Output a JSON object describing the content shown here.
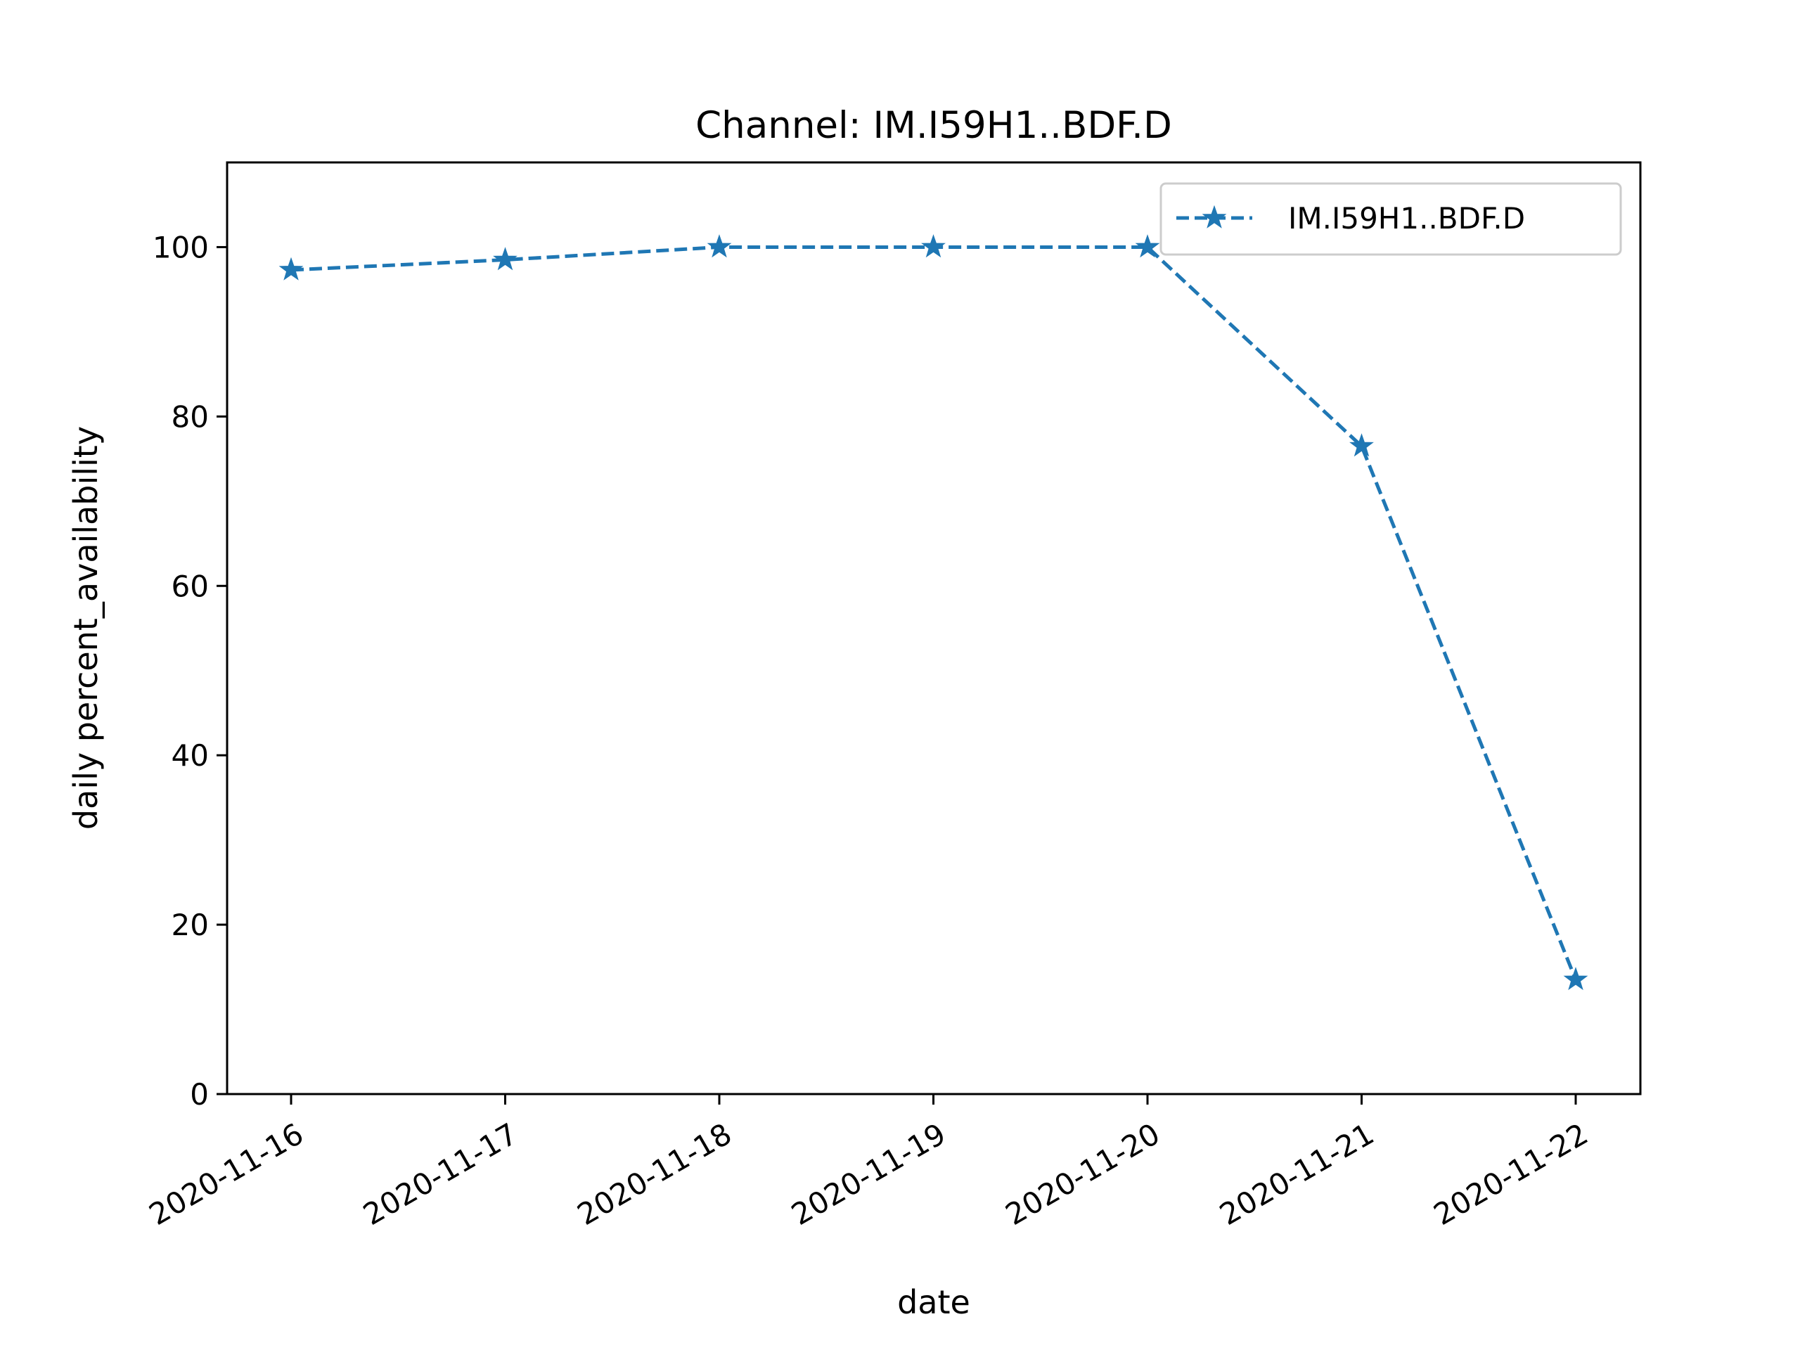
{
  "chart_data": {
    "type": "line",
    "title": "Channel: IM.I59H1..BDF.D",
    "xlabel": "date",
    "ylabel": "daily percent_availability",
    "x": [
      "2020-11-16",
      "2020-11-17",
      "2020-11-18",
      "2020-11-19",
      "2020-11-20",
      "2020-11-21",
      "2020-11-22"
    ],
    "series": [
      {
        "name": "IM.I59H1..BDF.D",
        "values": [
          97.3,
          98.5,
          100,
          100,
          100,
          76.5,
          13.5
        ],
        "color": "#1f77b4",
        "line_style": "dashed",
        "marker": "star"
      }
    ],
    "ylim": [
      0,
      110
    ],
    "yticks": [
      0,
      20,
      40,
      60,
      80,
      100
    ],
    "grid": false,
    "legend_position": "top-right"
  }
}
